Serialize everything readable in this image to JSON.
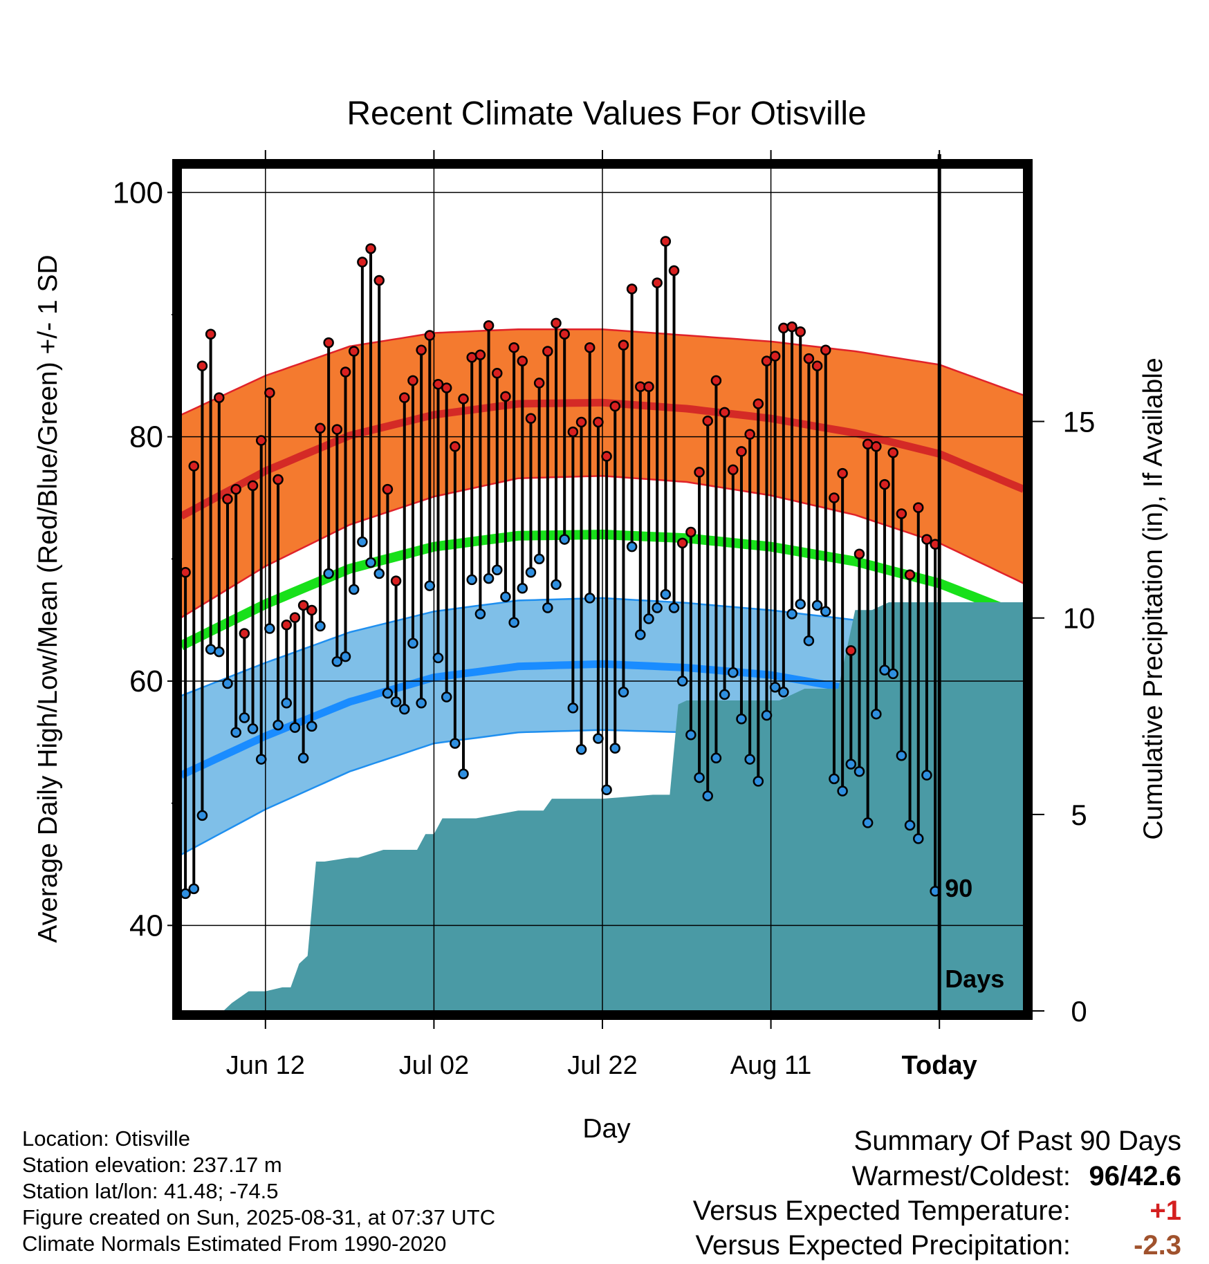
{
  "chart_data": {
    "type": "line",
    "title": "Recent Climate Values For Otisville",
    "xlabel": "Day",
    "ylabel": "Average Daily High/Low/Mean (Red/Blue/Green) +/- 1 SD",
    "y2label": "Cumulative Precipitation (in), If Available",
    "ylim": [
      33,
      102
    ],
    "yticks": [
      40,
      60,
      80,
      100
    ],
    "y2lim": [
      0,
      21.45
    ],
    "y2ticks": [
      0,
      5,
      10,
      15
    ],
    "xlim": [
      0,
      100
    ],
    "xtick_days": [
      10,
      30,
      50,
      70,
      90
    ],
    "xticklabels": [
      "Jun 12",
      "Jul 02",
      "Jul 22",
      "Aug 11",
      "Today"
    ],
    "today_day": 90,
    "period_label": [
      "90",
      "Days"
    ],
    "grid": true,
    "colors": {
      "high_band": "#f47a2f",
      "high_band_edge": "#e0222a",
      "high_mean": "#d42a26",
      "low_band": "#7fbfe8",
      "low_band_edge": "#1f8fef",
      "low_mean": "#1a8cff",
      "mean_line": "#18e01a",
      "precip": "#4a9aa5",
      "high_marker": "#d82020",
      "low_marker": "#2f8fe0"
    },
    "normals": {
      "day": [
        0,
        10,
        20,
        30,
        40,
        50,
        60,
        70,
        80,
        90,
        100
      ],
      "high_mean": [
        73.5,
        77.2,
        80.1,
        81.8,
        82.7,
        82.8,
        82.3,
        81.5,
        80.3,
        78.6,
        75.7
      ],
      "high_sd": [
        8.3,
        7.8,
        7.3,
        6.7,
        6.1,
        6.0,
        6.0,
        6.3,
        6.7,
        7.3,
        7.7
      ],
      "low_mean": [
        52.3,
        55.5,
        58.3,
        60.3,
        61.2,
        61.4,
        61.1,
        60.5,
        59.3,
        57.5,
        54.8
      ],
      "low_sd": [
        6.5,
        6.0,
        5.7,
        5.4,
        5.4,
        5.4,
        5.3,
        5.3,
        5.7,
        6.0,
        6.6
      ],
      "mean": [
        62.9,
        66.3,
        69.2,
        71.0,
        71.9,
        72.0,
        71.7,
        71.0,
        69.8,
        68.0,
        65.3
      ]
    },
    "series": [
      {
        "values_high": [
          68.9,
          77.6,
          85.8,
          88.4,
          83.2,
          74.9,
          75.7,
          63.9,
          76.0,
          79.7,
          83.6,
          76.5,
          64.6,
          65.2,
          66.2,
          65.8,
          80.7,
          87.7,
          80.6,
          85.3,
          87.0,
          94.3,
          95.4,
          92.8,
          75.7,
          68.2,
          83.2,
          84.6,
          87.1,
          88.3,
          84.3,
          84.0,
          79.2,
          83.1,
          86.5,
          86.7,
          89.1,
          85.2,
          83.3,
          87.3,
          86.2,
          81.5,
          84.4,
          87.0,
          89.3,
          88.4,
          80.4,
          81.2,
          87.3,
          81.2,
          78.4,
          82.5,
          87.5,
          92.1,
          84.1,
          84.1,
          92.6,
          96.0,
          93.6,
          71.3,
          72.2,
          77.1,
          81.3,
          84.6,
          82.0,
          77.3,
          78.8,
          80.2,
          82.7,
          86.2,
          86.6,
          88.9,
          89.0,
          88.6,
          86.4,
          85.8,
          87.1,
          75.0,
          77.0,
          62.5,
          70.4,
          79.4,
          79.2,
          76.1,
          78.7,
          73.7,
          68.7,
          74.2,
          71.6,
          71.2
        ],
        "values_low": [
          42.6,
          43.0,
          49.0,
          62.6,
          62.4,
          59.8,
          55.8,
          57.0,
          56.1,
          53.6,
          64.3,
          56.4,
          58.2,
          56.2,
          53.7,
          56.3,
          64.5,
          68.8,
          61.6,
          62.0,
          67.5,
          71.4,
          69.7,
          68.8,
          59.0,
          58.3,
          57.7,
          63.1,
          58.2,
          67.8,
          61.9,
          58.7,
          54.9,
          52.4,
          68.3,
          65.5,
          68.4,
          69.1,
          66.9,
          64.8,
          67.6,
          68.9,
          70.0,
          66.0,
          67.9,
          71.6,
          57.8,
          54.4,
          66.8,
          55.3,
          51.1,
          54.5,
          59.1,
          71.0,
          63.8,
          65.1,
          66.0,
          67.1,
          66.0,
          60.0,
          55.6,
          52.1,
          50.6,
          53.7,
          58.9,
          60.7,
          56.9,
          53.6,
          51.8,
          57.2,
          59.5,
          59.1,
          65.5,
          66.3,
          63.3,
          66.2,
          65.7,
          52.0,
          51.0,
          53.2,
          52.6,
          48.4,
          57.3,
          60.9,
          60.6,
          53.9,
          48.2,
          47.1,
          52.3,
          42.8
        ]
      }
    ],
    "precip_cumulative": {
      "day": [
        0,
        5,
        6,
        8,
        10,
        12,
        13,
        14,
        15,
        16,
        17,
        20,
        21,
        24,
        25,
        28,
        29,
        30,
        31,
        32,
        35,
        40,
        43,
        44,
        50,
        56,
        58,
        59,
        60,
        65,
        70,
        71,
        74,
        75,
        76,
        78,
        80,
        82,
        84,
        87,
        88,
        90,
        100
      ],
      "values": [
        0,
        0,
        0.2,
        0.5,
        0.5,
        0.6,
        0.6,
        1.2,
        1.4,
        3.8,
        3.8,
        3.9,
        3.9,
        4.1,
        4.1,
        4.1,
        4.5,
        4.5,
        4.9,
        4.9,
        4.9,
        5.1,
        5.1,
        5.4,
        5.4,
        5.5,
        5.5,
        7.8,
        7.9,
        7.9,
        7.9,
        7.9,
        8.2,
        8.2,
        8.2,
        8.2,
        10.2,
        10.2,
        10.4,
        10.4,
        10.4,
        10.4,
        10.4
      ]
    }
  },
  "footer": {
    "location": "Location: Otisville",
    "elevation": "Station elevation: 237.17 m",
    "latlon": "Station lat/lon: 41.48; -74.5",
    "created": "Figure created on Sun, 2025-08-31, at 07:37 UTC",
    "normals": "Climate Normals Estimated From 1990-2020"
  },
  "summary": {
    "title": "Summary Of Past 90 Days",
    "warm_label": "Warmest/Coldest:",
    "warm_high": "96",
    "warm_sep": "/",
    "warm_low": "42.6",
    "temp_label": "Versus Expected Temperature:",
    "temp_value": "+1",
    "temp_color": "#d42020",
    "precip_label": "Versus Expected Precipitation:",
    "precip_value": "-2.3",
    "precip_color": "#a0522d"
  }
}
